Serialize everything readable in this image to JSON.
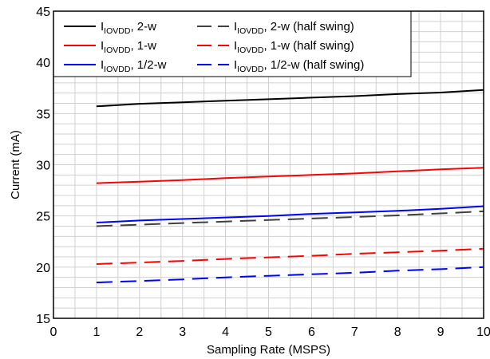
{
  "chart_data": {
    "type": "line",
    "xlabel": "Sampling Rate (MSPS)",
    "ylabel": "Current (mA)",
    "xlim": [
      0,
      10
    ],
    "ylim": [
      15,
      45
    ],
    "xticks": [
      "0",
      "1",
      "2",
      "3",
      "4",
      "5",
      "6",
      "7",
      "8",
      "9",
      "10"
    ],
    "yticks": [
      "15",
      "20",
      "25",
      "30",
      "35",
      "40",
      "45"
    ],
    "grid": true,
    "legend_position": "top-left",
    "x": [
      1,
      2,
      3,
      4,
      5,
      6,
      7,
      8,
      9,
      10
    ],
    "series": [
      {
        "label_main": "I",
        "label_sub": "IOVDD",
        "label_rest": ", 2-w",
        "color": "#000000",
        "dash": "solid",
        "values": [
          35.7,
          35.95,
          36.1,
          36.25,
          36.4,
          36.55,
          36.7,
          36.9,
          37.05,
          37.3
        ]
      },
      {
        "label_main": "I",
        "label_sub": "IOVDD",
        "label_rest": ", 1-w",
        "color": "#ff0000",
        "dash": "solid",
        "values": [
          28.2,
          28.35,
          28.5,
          28.7,
          28.85,
          29.0,
          29.15,
          29.35,
          29.55,
          29.7
        ]
      },
      {
        "label_main": "I",
        "label_sub": "IOVDD",
        "label_rest": ", 1/2-w",
        "color": "#0000ff",
        "dash": "solid",
        "values": [
          24.35,
          24.55,
          24.7,
          24.85,
          25.0,
          25.2,
          25.35,
          25.5,
          25.7,
          25.95
        ]
      },
      {
        "label_main": "I",
        "label_sub": "IOVDD",
        "label_rest": ", 2-w (half swing)",
        "color": "#404040",
        "dash": "dashed",
        "values": [
          24.0,
          24.15,
          24.3,
          24.45,
          24.6,
          24.75,
          24.9,
          25.05,
          25.25,
          25.45
        ]
      },
      {
        "label_main": "I",
        "label_sub": "IOVDD",
        "label_rest": ", 1-w (half swing)",
        "color": "#ff0000",
        "dash": "dashed",
        "values": [
          20.3,
          20.45,
          20.6,
          20.8,
          20.95,
          21.1,
          21.3,
          21.45,
          21.6,
          21.8
        ]
      },
      {
        "label_main": "I",
        "label_sub": "IOVDD",
        "label_rest": ", 1/2-w (half swing)",
        "color": "#0000ff",
        "dash": "dashed",
        "values": [
          18.5,
          18.65,
          18.8,
          19.0,
          19.15,
          19.3,
          19.45,
          19.65,
          19.8,
          20.0
        ]
      }
    ]
  }
}
